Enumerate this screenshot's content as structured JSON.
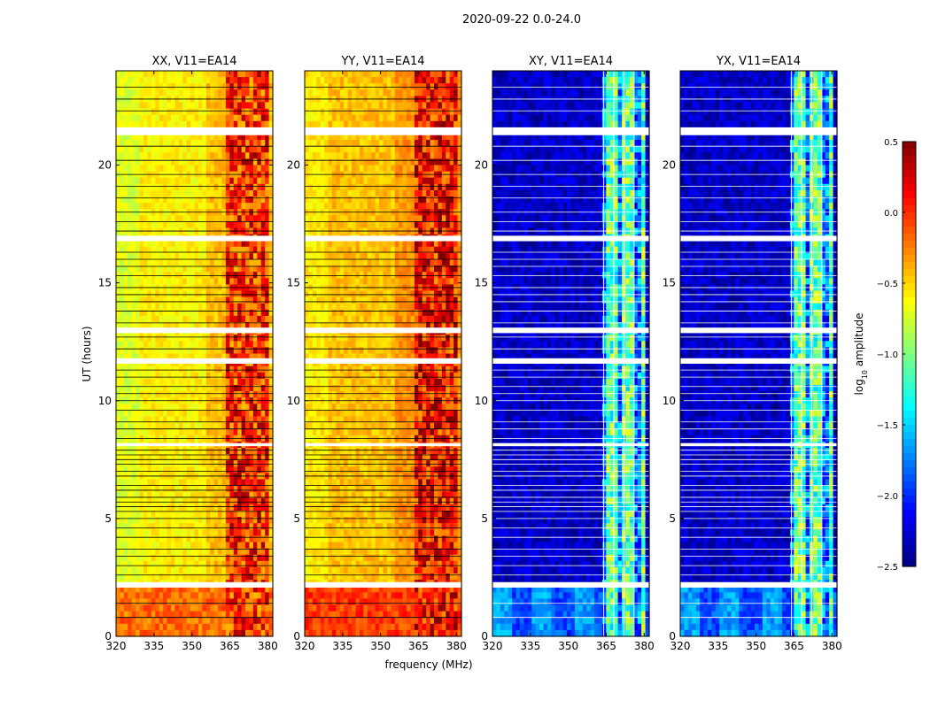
{
  "chart_data": {
    "type": "heatmap",
    "suptitle": "2020-09-22 0.0-24.0",
    "xlabel": "frequency (MHz)",
    "ylabel": "UT (hours)",
    "xlim": [
      320,
      382
    ],
    "ylim": [
      0,
      24
    ],
    "xticks": [
      "320",
      "335",
      "350",
      "365",
      "380"
    ],
    "xtick_values": [
      320,
      335,
      350,
      365,
      380
    ],
    "yticks": [
      "0",
      "5",
      "10",
      "15",
      "20"
    ],
    "ytick_values": [
      0,
      5,
      10,
      15,
      20
    ],
    "colorbar": {
      "label": "log",
      "label_sub": "10",
      "label_tail": " amplitude",
      "min": -2.5,
      "max": 0.5,
      "ticks": [
        "0.5",
        "0.0",
        "−0.5",
        "−1.0",
        "−1.5",
        "−2.0",
        "−2.5"
      ],
      "tick_values": [
        0.5,
        0.0,
        -0.5,
        -1.0,
        -1.5,
        -2.0,
        -2.5
      ],
      "colormap": "jet"
    },
    "panels": [
      {
        "name": "XX",
        "title": "XX, V11=EA14",
        "base_log_amplitude": -0.6,
        "band_log_amplitude": 0.0,
        "early_log_amplitude": -0.2
      },
      {
        "name": "YY",
        "title": "YY, V11=EA14",
        "base_log_amplitude": -0.45,
        "band_log_amplitude": 0.1,
        "early_log_amplitude": -0.05
      },
      {
        "name": "XY",
        "title": "XY, V11=EA14",
        "base_log_amplitude": -2.3,
        "band_log_amplitude": -1.1,
        "early_log_amplitude": -1.9
      },
      {
        "name": "YX",
        "title": "YX, V11=EA14",
        "base_log_amplitude": -2.3,
        "band_log_amplitude": -1.1,
        "early_log_amplitude": -1.9
      }
    ],
    "rfi_band_mhz": [
      363,
      381
    ],
    "flagged_ut_hours": [
      2.1,
      2.2,
      8.1,
      11.6,
      11.7,
      12.9,
      13.0,
      16.8,
      16.9,
      21.3,
      21.4,
      21.5
    ]
  }
}
